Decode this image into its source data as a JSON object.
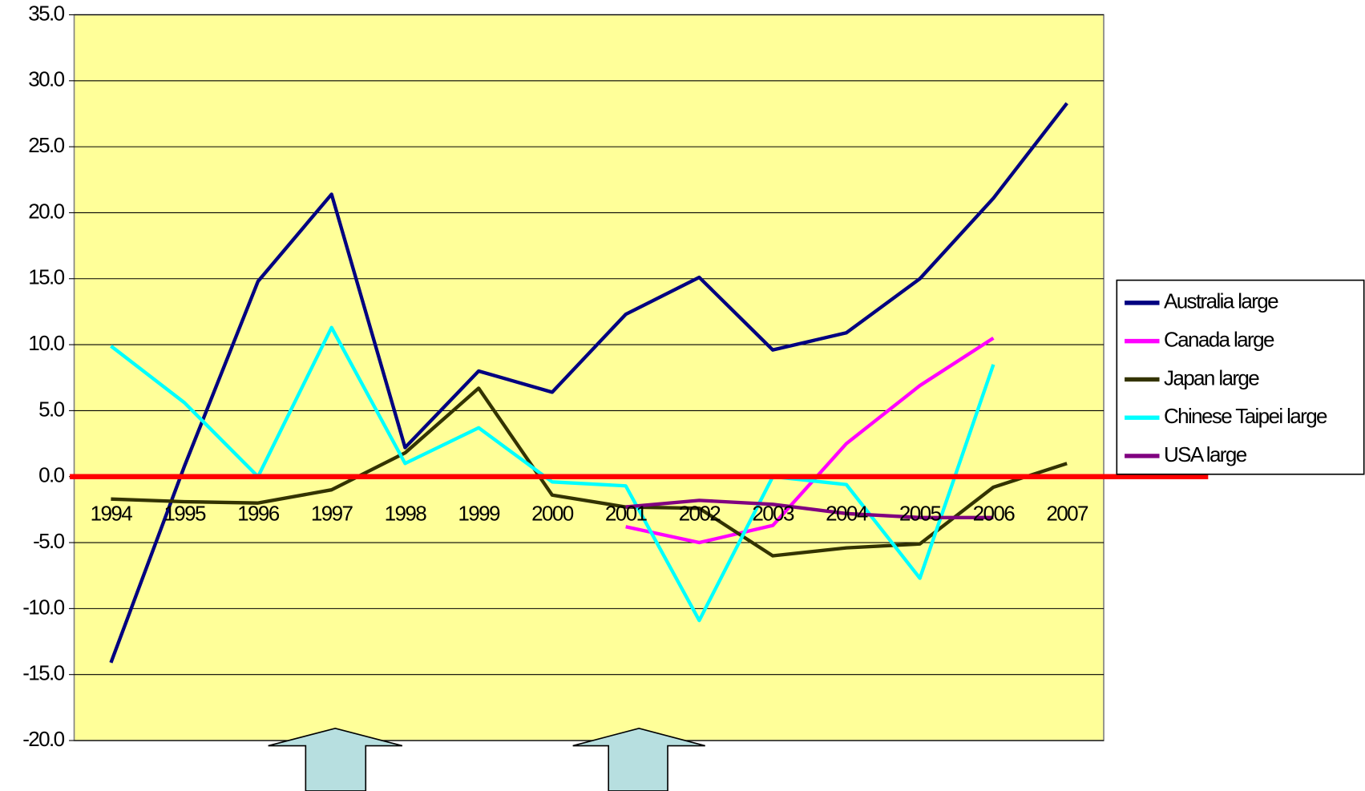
{
  "chart_data": {
    "type": "line",
    "categories": [
      "1994",
      "1995",
      "1996",
      "1997",
      "1998",
      "1999",
      "2000",
      "2001",
      "2002",
      "2003",
      "2004",
      "2005",
      "2006",
      "2007"
    ],
    "series": [
      {
        "name": "Australia large",
        "color": "#000080",
        "values": [
          -14.1,
          0.8,
          14.8,
          21.4,
          2.2,
          8.0,
          6.4,
          12.3,
          15.1,
          9.6,
          10.9,
          15.0,
          21.1,
          28.3
        ]
      },
      {
        "name": "Canada large",
        "color": "#ff00ff",
        "values": [
          null,
          null,
          null,
          null,
          null,
          null,
          null,
          -3.8,
          -5.0,
          -3.7,
          2.5,
          6.9,
          10.5,
          null
        ]
      },
      {
        "name": "Japan large",
        "color": "#333300",
        "values": [
          -1.7,
          -1.9,
          -2.0,
          -1.0,
          1.8,
          6.7,
          -1.4,
          -2.3,
          -2.4,
          -6.0,
          -5.4,
          -5.1,
          -0.8,
          1.0
        ]
      },
      {
        "name": "Chinese Taipei large",
        "color": "#00ffff",
        "values": [
          9.9,
          5.6,
          0.0,
          11.3,
          1.0,
          3.7,
          -0.4,
          -0.7,
          -10.9,
          0.0,
          -0.6,
          -7.7,
          8.5,
          null
        ]
      },
      {
        "name": "USA large",
        "color": "#800080",
        "values": [
          null,
          null,
          null,
          null,
          null,
          null,
          null,
          -2.3,
          -1.8,
          -2.1,
          -2.8,
          -3.1,
          -3.1,
          null
        ]
      }
    ],
    "ylim": [
      -20,
      35
    ],
    "yticks": [
      {
        "value": -20,
        "label": "-20.0"
      },
      {
        "value": -15,
        "label": "-15.0"
      },
      {
        "value": -10,
        "label": "-10.0"
      },
      {
        "value": -5,
        "label": "-5.0"
      },
      {
        "value": 0,
        "label": "0.0"
      },
      {
        "value": 5,
        "label": "5.0"
      },
      {
        "value": 10,
        "label": "10.0"
      },
      {
        "value": 15,
        "label": "15.0"
      },
      {
        "value": 20,
        "label": "20.0"
      },
      {
        "value": 25,
        "label": "25.0"
      },
      {
        "value": 30,
        "label": "30.0"
      },
      {
        "value": 35,
        "label": "35.0"
      }
    ],
    "grid": true,
    "legend": "right",
    "zero_line_color": "#ff0000",
    "plot_background": "#ffff99"
  }
}
